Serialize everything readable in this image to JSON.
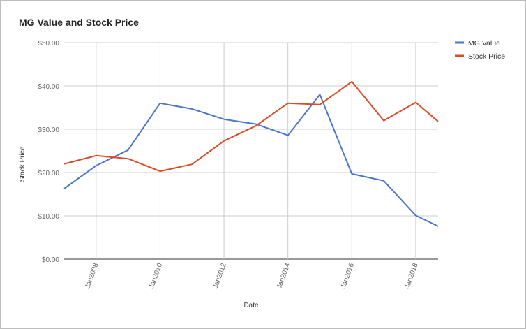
{
  "chart_data": {
    "type": "line",
    "title": "MG Value and Stock Price",
    "xlabel": "Date",
    "ylabel": "Stock Price",
    "ylim": [
      0,
      50
    ],
    "y_ticks": [
      0,
      10,
      20,
      30,
      40,
      50
    ],
    "y_tick_labels": [
      "$0.00",
      "$10.00",
      "$20.00",
      "$30.00",
      "$40.00",
      "$50.00"
    ],
    "x_range": [
      2007,
      2018.7
    ],
    "x_ticks": [
      2008,
      2010,
      2012,
      2014,
      2016,
      2018
    ],
    "x_tick_labels": [
      "Jan2008",
      "Jan2010",
      "Jan2012",
      "Jan2014",
      "Jan2016",
      "Jan2018"
    ],
    "grid": true,
    "legend_position": "top-right",
    "x": [
      2007,
      2008,
      2009,
      2010,
      2011,
      2012,
      2013,
      2014,
      2015,
      2016,
      2017,
      2018,
      2018.7
    ],
    "series": [
      {
        "name": "MG Value",
        "color": "#4a76cf",
        "values": [
          16.3,
          21.6,
          25.2,
          36.0,
          34.7,
          32.3,
          31.2,
          28.6,
          38.0,
          19.7,
          18.1,
          10.1,
          7.6
        ]
      },
      {
        "name": "Stock Price",
        "color": "#dc4b28",
        "values": [
          22.0,
          23.9,
          23.2,
          20.3,
          21.9,
          27.3,
          30.8,
          36.0,
          35.7,
          41.0,
          32.0,
          36.2,
          31.8
        ]
      }
    ]
  }
}
